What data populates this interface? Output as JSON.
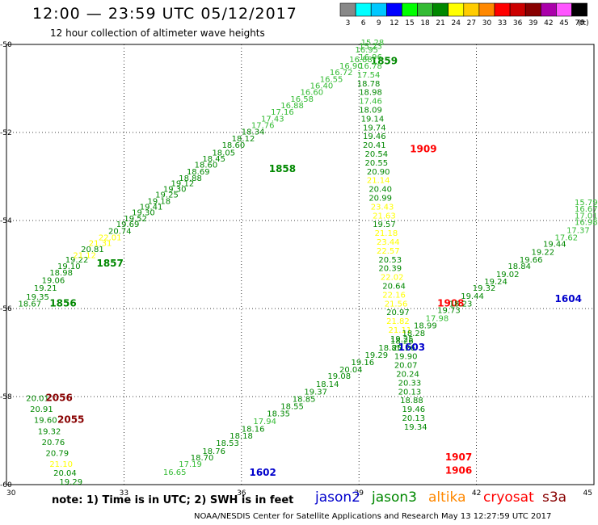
{
  "header": {
    "title": "12:00 — 23:59 UTC 05/12/2017",
    "subtitle": "12 hour collection of altimeter wave heights"
  },
  "legend": {
    "unit": "(ft)",
    "bins": [
      {
        "label": "3",
        "color": "#888888"
      },
      {
        "label": "6",
        "color": "#00ffff"
      },
      {
        "label": "9",
        "color": "#00c8ff"
      },
      {
        "label": "12",
        "color": "#0000ff"
      },
      {
        "label": "15",
        "color": "#00ff00"
      },
      {
        "label": "18",
        "color": "#33bb33"
      },
      {
        "label": "21",
        "color": "#008800"
      },
      {
        "label": "24",
        "color": "#ffff00"
      },
      {
        "label": "27",
        "color": "#ffcc00"
      },
      {
        "label": "30",
        "color": "#ff8800"
      },
      {
        "label": "33",
        "color": "#ff0000"
      },
      {
        "label": "36",
        "color": "#cc0000"
      },
      {
        "label": "39",
        "color": "#880000"
      },
      {
        "label": "42",
        "color": "#aa00aa"
      },
      {
        "label": "45",
        "color": "#ff55ff"
      },
      {
        "label": "70",
        "color": "#000000"
      }
    ]
  },
  "footer": {
    "note": "note: 1) Time is in UTC; 2) SWH is in feet",
    "credit": "NOAA/NESDIS Center for Satellite Applications and Research   May 13 12:27:59 UTC 2017",
    "satellites": [
      {
        "name": "jason2",
        "color": "#0000cc"
      },
      {
        "name": "jason3",
        "color": "#008800"
      },
      {
        "name": "altika",
        "color": "#ff8800"
      },
      {
        "name": "cryosat",
        "color": "#ff0000"
      },
      {
        "name": "s3a",
        "color": "#880000"
      }
    ]
  },
  "chart_data": {
    "type": "scatter",
    "xlim": [
      30,
      45
    ],
    "ylim": [
      -60,
      -50
    ],
    "x_ticks": [
      "30",
      "33",
      "36",
      "39",
      "42",
      "45"
    ],
    "y_ticks": [
      "-50",
      "-52",
      "-54",
      "-56",
      "-58",
      "-60"
    ],
    "grid": true,
    "tracks": [
      {
        "satellite": "jason3",
        "time": "1856",
        "label_at": [
          31.1,
          -55.95
        ],
        "points": [
          [
            30.3,
            -55.95,
            18.67
          ],
          [
            30.5,
            -55.8,
            19.35
          ],
          [
            30.7,
            -55.6,
            19.21
          ],
          [
            30.9,
            -55.42,
            19.06
          ],
          [
            31.1,
            -55.25,
            18.98
          ],
          [
            31.3,
            -55.1,
            19.1
          ],
          [
            31.5,
            -54.95,
            19.22
          ]
        ]
      },
      {
        "satellite": "jason3",
        "time": "1857",
        "label_at": [
          32.3,
          -55.05
        ],
        "points": [
          [
            31.7,
            -54.85,
            21.12
          ],
          [
            31.9,
            -54.72,
            20.81
          ],
          [
            32.1,
            -54.58,
            21.31
          ],
          [
            32.35,
            -54.45,
            22.01
          ],
          [
            32.6,
            -54.3,
            20.74
          ],
          [
            32.8,
            -54.15,
            19.69
          ],
          [
            33.0,
            -54.02,
            19.52
          ],
          [
            33.2,
            -53.88,
            19.3
          ],
          [
            33.4,
            -53.75,
            19.41
          ],
          [
            33.6,
            -53.62,
            19.18
          ],
          [
            33.8,
            -53.48,
            19.25
          ],
          [
            34.0,
            -53.35,
            19.3
          ],
          [
            34.2,
            -53.22,
            19.12
          ],
          [
            34.4,
            -53.1,
            18.88
          ],
          [
            34.6,
            -52.95,
            18.69
          ],
          [
            34.8,
            -52.8,
            18.6
          ],
          [
            35.0,
            -52.66,
            18.45
          ]
        ]
      },
      {
        "satellite": "jason3",
        "time": "1858",
        "label_at": [
          36.7,
          -52.9
        ],
        "points": [
          [
            35.25,
            -52.52,
            18.05
          ],
          [
            35.5,
            -52.35,
            18.6
          ],
          [
            35.75,
            -52.2,
            18.12
          ],
          [
            36.0,
            -52.05,
            18.34
          ],
          [
            36.25,
            -51.9,
            17.76
          ],
          [
            36.5,
            -51.75,
            17.43
          ],
          [
            36.75,
            -51.6,
            17.16
          ],
          [
            37.0,
            -51.45,
            16.88
          ],
          [
            37.25,
            -51.3,
            16.58
          ],
          [
            37.5,
            -51.15,
            16.6
          ],
          [
            37.75,
            -51.0,
            16.4
          ],
          [
            38.0,
            -50.85,
            16.55
          ],
          [
            38.25,
            -50.7,
            16.72
          ],
          [
            38.5,
            -50.55,
            16.9
          ],
          [
            38.75,
            -50.4,
            16.88
          ]
        ]
      },
      {
        "satellite": "jason3",
        "time": "1859",
        "label_at": [
          39.3,
          -50.45
        ],
        "points": [
          [
            38.9,
            -50.18,
            16.95
          ],
          [
            39.0,
            -50.1,
            15.23
          ],
          [
            39.05,
            -50.02,
            15.28
          ]
        ]
      },
      {
        "satellite": "cryosat",
        "time": "1909",
        "label_at": [
          40.3,
          -52.45
        ],
        "points": [
          [
            39.0,
            -50.35,
            16.96
          ],
          [
            39.0,
            -50.55,
            16.78
          ],
          [
            38.95,
            -50.75,
            17.54
          ],
          [
            38.95,
            -50.95,
            18.78
          ],
          [
            39.0,
            -51.15,
            18.98
          ],
          [
            39.0,
            -51.35,
            17.46
          ],
          [
            39.0,
            -51.55,
            18.09
          ],
          [
            39.05,
            -51.75,
            19.14
          ],
          [
            39.1,
            -51.95,
            19.74
          ],
          [
            39.1,
            -52.15,
            19.46
          ],
          [
            39.1,
            -52.35,
            20.41
          ],
          [
            39.15,
            -52.55,
            20.54
          ],
          [
            39.15,
            -52.75,
            20.55
          ],
          [
            39.2,
            -52.95,
            20.9
          ],
          [
            39.2,
            -53.15,
            21.14
          ],
          [
            39.25,
            -53.35,
            20.4
          ],
          [
            39.25,
            -53.55,
            20.99
          ],
          [
            39.3,
            -53.75,
            23.43
          ],
          [
            39.35,
            -53.95,
            21.63
          ],
          [
            39.35,
            -54.15,
            19.57
          ],
          [
            39.4,
            -54.35,
            21.18
          ],
          [
            39.45,
            -54.55,
            23.44
          ],
          [
            39.45,
            -54.75,
            22.57
          ]
        ]
      },
      {
        "satellite": "cryosat",
        "time": "1908",
        "label_at": [
          41.0,
          -55.95
        ],
        "points": [
          [
            39.5,
            -54.95,
            20.53
          ],
          [
            39.5,
            -55.15,
            20.39
          ],
          [
            39.55,
            -55.35,
            22.02
          ],
          [
            39.6,
            -55.55,
            20.64
          ],
          [
            39.6,
            -55.75,
            22.16
          ],
          [
            39.65,
            -55.95,
            21.56
          ],
          [
            39.7,
            -56.15,
            20.97
          ],
          [
            39.7,
            -56.35,
            21.82
          ],
          [
            39.75,
            -56.55,
            21.11
          ]
        ]
      },
      {
        "satellite": "cryosat",
        "time": "1907",
        "label_at": [
          41.2,
          -59.45
        ],
        "points": [
          [
            39.8,
            -56.75,
            19.25
          ],
          [
            39.85,
            -56.95,
            20.26
          ],
          [
            39.9,
            -57.15,
            19.9
          ],
          [
            39.9,
            -57.35,
            20.07
          ],
          [
            39.95,
            -57.55,
            20.24
          ],
          [
            40.0,
            -57.75,
            20.33
          ],
          [
            40.0,
            -57.95,
            20.13
          ],
          [
            40.05,
            -58.15,
            18.88
          ],
          [
            40.1,
            -58.35,
            19.46
          ],
          [
            40.1,
            -58.55,
            20.13
          ],
          [
            40.15,
            -58.75,
            19.34
          ]
        ]
      },
      {
        "satellite": "cryosat",
        "time": "1906",
        "label_at": [
          41.2,
          -59.75
        ],
        "points": []
      },
      {
        "satellite": "jason2",
        "time": "1602",
        "label_at": [
          36.2,
          -59.8
        ],
        "points": [
          [
            34.0,
            -59.78,
            16.65
          ],
          [
            34.4,
            -59.6,
            17.19
          ],
          [
            34.7,
            -59.45,
            18.7
          ],
          [
            35.0,
            -59.3,
            18.76
          ],
          [
            35.35,
            -59.12,
            18.53
          ],
          [
            35.7,
            -58.95,
            18.18
          ],
          [
            36.0,
            -58.8,
            18.16
          ],
          [
            36.3,
            -58.62,
            17.94
          ],
          [
            36.65,
            -58.45,
            18.35
          ],
          [
            37.0,
            -58.28,
            18.55
          ],
          [
            37.3,
            -58.12,
            18.85
          ],
          [
            37.6,
            -57.95,
            19.37
          ],
          [
            37.9,
            -57.78,
            18.14
          ],
          [
            38.2,
            -57.6,
            19.08
          ],
          [
            38.5,
            -57.45,
            20.04
          ],
          [
            38.8,
            -57.28,
            19.16
          ]
        ]
      },
      {
        "satellite": "jason2",
        "time": "1603",
        "label_at": [
          40.0,
          -56.95
        ],
        "points": [
          [
            39.15,
            -57.12,
            19.29
          ],
          [
            39.5,
            -56.95,
            18.85
          ],
          [
            39.8,
            -56.8,
            18.26
          ],
          [
            40.1,
            -56.62,
            18.28
          ],
          [
            40.4,
            -56.45,
            18.99
          ],
          [
            40.7,
            -56.28,
            17.98
          ],
          [
            41.0,
            -56.1,
            19.73
          ],
          [
            41.3,
            -55.95,
            18.23
          ],
          [
            41.6,
            -55.78,
            19.44
          ],
          [
            41.9,
            -55.6,
            19.32
          ],
          [
            42.2,
            -55.45,
            19.24
          ],
          [
            42.5,
            -55.28,
            19.02
          ],
          [
            42.8,
            -55.1,
            18.84
          ],
          [
            43.1,
            -54.95,
            19.66
          ],
          [
            43.4,
            -54.78,
            19.22
          ]
        ]
      },
      {
        "satellite": "jason2",
        "time": "1604",
        "label_at": [
          44.0,
          -55.85
        ],
        "points": [
          [
            43.7,
            -54.6,
            19.44
          ],
          [
            44.0,
            -54.45,
            17.62
          ],
          [
            44.3,
            -54.28,
            17.37
          ],
          [
            44.55,
            -54.1,
            16.98
          ],
          [
            44.8,
            -53.95,
            17.01
          ],
          [
            45.0,
            -53.8,
            16.67
          ],
          [
            45.0,
            -53.65,
            15.79
          ]
        ]
      },
      {
        "satellite": "s3a",
        "time": "2056",
        "label_at": [
          31.0,
          -58.1
        ],
        "points": [
          [
            30.5,
            -58.1,
            20.01
          ],
          [
            30.6,
            -58.35,
            20.91
          ],
          [
            30.7,
            -58.6,
            19.6
          ],
          [
            30.8,
            -58.85,
            19.32
          ],
          [
            30.9,
            -59.1,
            20.76
          ],
          [
            31.0,
            -59.35,
            20.79
          ],
          [
            31.1,
            -59.6,
            21.1
          ]
        ]
      },
      {
        "satellite": "s3a",
        "time": "2055",
        "label_at": [
          31.3,
          -58.6
        ],
        "points": [
          [
            31.2,
            -59.8,
            20.04
          ],
          [
            31.35,
            -60.0,
            19.29
          ]
        ]
      }
    ]
  }
}
